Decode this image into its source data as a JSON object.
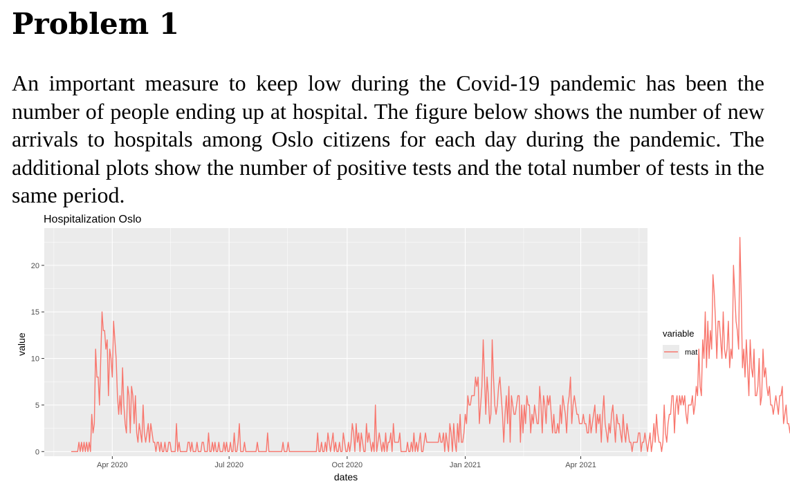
{
  "document": {
    "heading": "Problem 1",
    "paragraph": "An important measure to keep low during the Covid-19 pandemic has been the number of people ending up at hospital. The figure below shows the number of new arrivals to hospitals among Oslo citizens for each day during the pandemic. The additional plots show the number of positive tests and the total number of tests in the same period."
  },
  "colors": {
    "panel": "#ebebeb",
    "grid": "#ffffff",
    "line": "#F8766D",
    "axis_text": "#4d4d4d"
  },
  "chart_data": {
    "type": "line",
    "title": "Hospitalization Oslo",
    "xlabel": "dates",
    "ylabel": "value",
    "xlim": [
      "2020-02-08",
      "2021-05-23"
    ],
    "ylim": [
      -0.5,
      24
    ],
    "yticks": [
      0,
      5,
      10,
      15,
      20
    ],
    "xticks": [
      {
        "date": "2020-04-01",
        "label": "Apr 2020"
      },
      {
        "date": "2020-07-01",
        "label": "Jul 2020"
      },
      {
        "date": "2020-10-01",
        "label": "Oct 2020"
      },
      {
        "date": "2021-01-01",
        "label": "Jan 2021"
      },
      {
        "date": "2021-04-01",
        "label": "Apr 2021"
      }
    ],
    "legend": {
      "title": "variable",
      "position": "right"
    },
    "grid": true,
    "series": [
      {
        "name": "mat",
        "x_start": "2020-02-29",
        "x_step_days": 1,
        "values": [
          0,
          0,
          0,
          0,
          0,
          0,
          1,
          0,
          1,
          0,
          1,
          0,
          1,
          0,
          1,
          0,
          4,
          2,
          3,
          11,
          8,
          8,
          5,
          10,
          15,
          13,
          13,
          11,
          12,
          6,
          11,
          10,
          8,
          14,
          12,
          10,
          6,
          4,
          6,
          4,
          9,
          5,
          3,
          2,
          7,
          6,
          2,
          7,
          6,
          3,
          6,
          2,
          1,
          3,
          2,
          1,
          5,
          2,
          1,
          2,
          3,
          1,
          3,
          2,
          1,
          1,
          0,
          1,
          1,
          0,
          1,
          0,
          0,
          1,
          0,
          0,
          1,
          1,
          0,
          0,
          0,
          0,
          3,
          0,
          1,
          0,
          0,
          0,
          0,
          0,
          0,
          1,
          1,
          0,
          1,
          0,
          0,
          0,
          1,
          0,
          0,
          0,
          1,
          1,
          0,
          0,
          0,
          2,
          0,
          0,
          1,
          0,
          1,
          0,
          0,
          1,
          0,
          0,
          0,
          1,
          0,
          1,
          0,
          0,
          1,
          0,
          0,
          2,
          0,
          0,
          1,
          3,
          0,
          0,
          0,
          1,
          0,
          0,
          0,
          0,
          0,
          0,
          0,
          0,
          0,
          1,
          0,
          0,
          0,
          0,
          0,
          0,
          0,
          2,
          0,
          0,
          0,
          0,
          0,
          0,
          0,
          0,
          0,
          0,
          0,
          1,
          0,
          0,
          0,
          1,
          0,
          0,
          0,
          0,
          0,
          0,
          0,
          0,
          0,
          0,
          0,
          0,
          0,
          0,
          0,
          0,
          0,
          0,
          0,
          0,
          0,
          0,
          2,
          0,
          0,
          1,
          0,
          0,
          1,
          0,
          2,
          1,
          0,
          1,
          2,
          0,
          1,
          0,
          0,
          1,
          0,
          0,
          2,
          1,
          0,
          0,
          1,
          0,
          1,
          3,
          2,
          0,
          3,
          1,
          2,
          0,
          2,
          1,
          0,
          0,
          3,
          1,
          2,
          1,
          0,
          1,
          0,
          5,
          0,
          1,
          2,
          1,
          0,
          1,
          0,
          2,
          0,
          1,
          1,
          2,
          0,
          3,
          1,
          1,
          1,
          1,
          2,
          0,
          0,
          0,
          0,
          0,
          1,
          0,
          0,
          1,
          0,
          2,
          0,
          1,
          0,
          1,
          2,
          0,
          0,
          1,
          2,
          1,
          1,
          1,
          1,
          1,
          1,
          1,
          1,
          1,
          1,
          2,
          1,
          1,
          2,
          0,
          2,
          1,
          0,
          3,
          2,
          0,
          3,
          1,
          0,
          3,
          1,
          4,
          1,
          1,
          2,
          4,
          3,
          6,
          5,
          5,
          6,
          6,
          6,
          8,
          7,
          8,
          3,
          5,
          7,
          12,
          8,
          4,
          8,
          6,
          3,
          4,
          12,
          8,
          5,
          4,
          5,
          7,
          8,
          6,
          4,
          1,
          4,
          6,
          3,
          7,
          1,
          6,
          5,
          4,
          4,
          5,
          6,
          6,
          1,
          5,
          2,
          5,
          3,
          6,
          5,
          5,
          2,
          4,
          3,
          5,
          4,
          3,
          3,
          7,
          5,
          2,
          6,
          5,
          3,
          6,
          5,
          6,
          4,
          2,
          4,
          2,
          2,
          3,
          2,
          5,
          3,
          6,
          5,
          4,
          2,
          5,
          6,
          8,
          3,
          5,
          6,
          5,
          4,
          4,
          3,
          3,
          3,
          4,
          3,
          3,
          2,
          2,
          4,
          2,
          3,
          4,
          5,
          2,
          4,
          3,
          4,
          1,
          4,
          6,
          3,
          2,
          1,
          3,
          2,
          4,
          5,
          3,
          1,
          4,
          3,
          3,
          2,
          1,
          4,
          2,
          1,
          3,
          2,
          1,
          1,
          0,
          1,
          1,
          1,
          1,
          2,
          2,
          0,
          1,
          1,
          2,
          1,
          0,
          1,
          2,
          0,
          1,
          3,
          1,
          4,
          2,
          1,
          1,
          0,
          1,
          5,
          2,
          1,
          3,
          4,
          4,
          6,
          6,
          2,
          5,
          6,
          4,
          6,
          5,
          6,
          5,
          6,
          4,
          3,
          5,
          5,
          5,
          6,
          4,
          5,
          7,
          6,
          11,
          7,
          6,
          12,
          10,
          15,
          9,
          14,
          10,
          13,
          11,
          19,
          17,
          14,
          10,
          14,
          14,
          12,
          10,
          15,
          11,
          10,
          11,
          14,
          9,
          11,
          10,
          20,
          17,
          14,
          13,
          11,
          23,
          17,
          9,
          11,
          8,
          12,
          9,
          6,
          12,
          9,
          8,
          11,
          6,
          6,
          7,
          10,
          5,
          6,
          11,
          8,
          9,
          7,
          6,
          7,
          5,
          5,
          4,
          5,
          6,
          5,
          4,
          6,
          6,
          7,
          3,
          4,
          5,
          3,
          3,
          2,
          4,
          4,
          1,
          2,
          1,
          3,
          2,
          3,
          4,
          1,
          1,
          2,
          3,
          3,
          3,
          2
        ]
      }
    ]
  }
}
